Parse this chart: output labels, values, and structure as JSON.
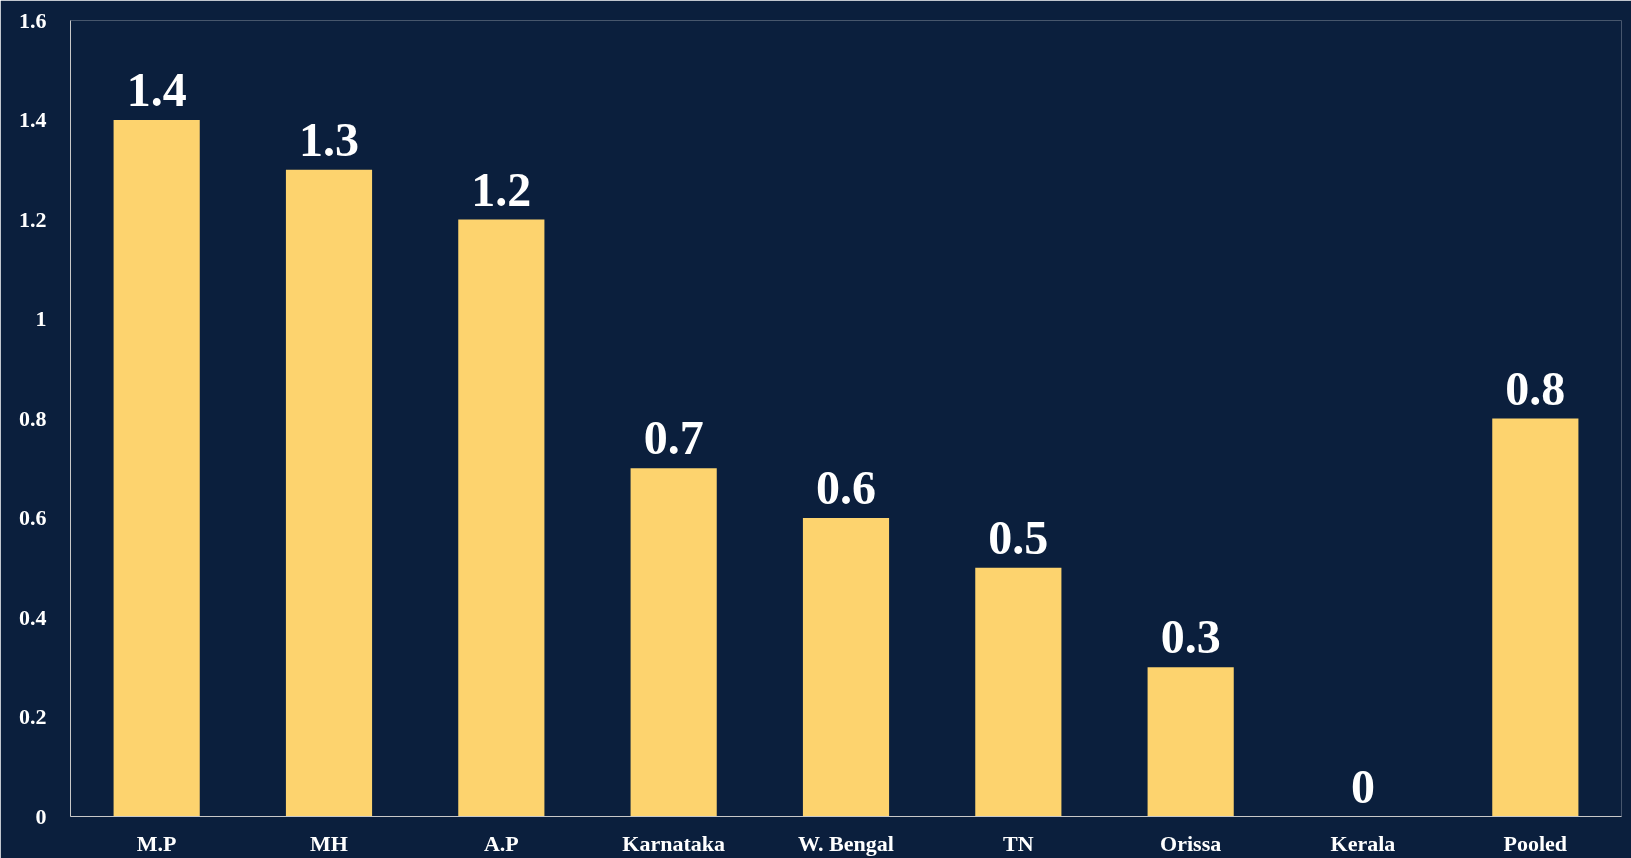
{
  "chart_data": {
    "type": "bar",
    "categories": [
      "M.P",
      "MH",
      "A.P",
      "Karnataka",
      "W. Bengal",
      "TN",
      "Orissa",
      "Kerala",
      "Pooled"
    ],
    "values": [
      1.4,
      1.3,
      1.2,
      0.7,
      0.6,
      0.5,
      0.3,
      0,
      0.8
    ],
    "color": "#fdd36e",
    "ylim": [
      0,
      1.6
    ],
    "yticks": [
      0,
      0.2,
      0.4,
      0.6,
      0.8,
      1,
      1.2,
      1.4,
      1.6
    ],
    "grid": false,
    "data_labels": true
  }
}
